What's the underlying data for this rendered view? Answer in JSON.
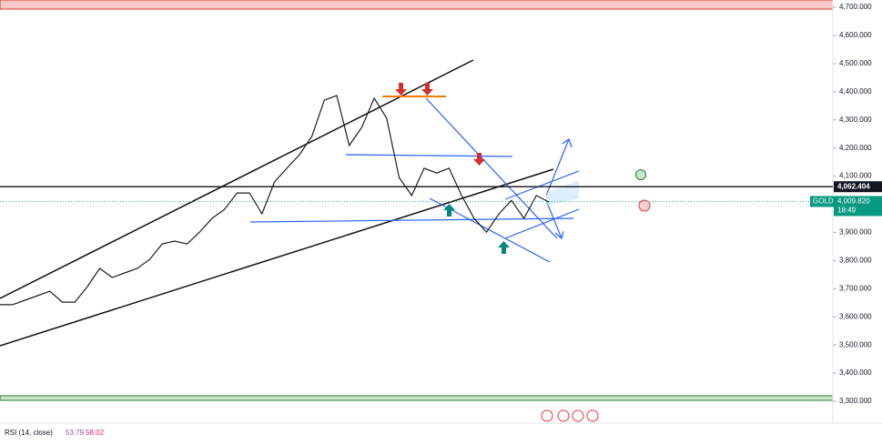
{
  "chart_data": {
    "type": "line",
    "symbol": "GOLD",
    "countdown": "18:49",
    "color": "#1e1e1e",
    "values": [
      3643,
      3643,
      3659,
      3675,
      3691,
      3652,
      3652,
      3707,
      3772,
      3740,
      3756,
      3772,
      3804,
      3859,
      3869,
      3859,
      3901,
      3950,
      3982,
      4040,
      4040,
      3966,
      4079,
      4128,
      4176,
      4241,
      4370,
      4386,
      4209,
      4273,
      4377,
      4306,
      4095,
      4031,
      4128,
      4111,
      4128,
      4031,
      3950,
      3901,
      3966,
      4014,
      3950,
      4031,
      4008
    ],
    "ylim": [
      3300,
      4700
    ],
    "yticks": [
      {
        "value": 3300,
        "label": "3,300.000"
      },
      {
        "value": 3400,
        "label": "3,400.000"
      },
      {
        "value": 3500,
        "label": "3,500.000"
      },
      {
        "value": 3600,
        "label": "3,600.000"
      },
      {
        "value": 3700,
        "label": "3,700.000"
      },
      {
        "value": 3800,
        "label": "3,800.000"
      },
      {
        "value": 3900,
        "label": "3,900.000"
      },
      {
        "value": 4000,
        "label": "4,000.000"
      },
      {
        "value": 4100,
        "label": "4,100.000"
      },
      {
        "value": 4200,
        "label": "4,200.000"
      },
      {
        "value": 4300,
        "label": "4,300.000"
      },
      {
        "value": 4400,
        "label": "4,400.000"
      },
      {
        "value": 4500,
        "label": "4,500.000"
      },
      {
        "value": 4600,
        "label": "4,600.000"
      },
      {
        "value": 4700,
        "label": "4,700.000"
      }
    ],
    "level_line": {
      "value": 4062.404,
      "label": "4,062.404"
    },
    "last_price": {
      "value": 4009.82,
      "label": "4,009.820"
    },
    "indicator": {
      "name": "RSI (14, close)",
      "values": [
        53.79,
        58.02
      ],
      "colors": [
        "#7e57c2",
        "#e91e63"
      ]
    }
  }
}
